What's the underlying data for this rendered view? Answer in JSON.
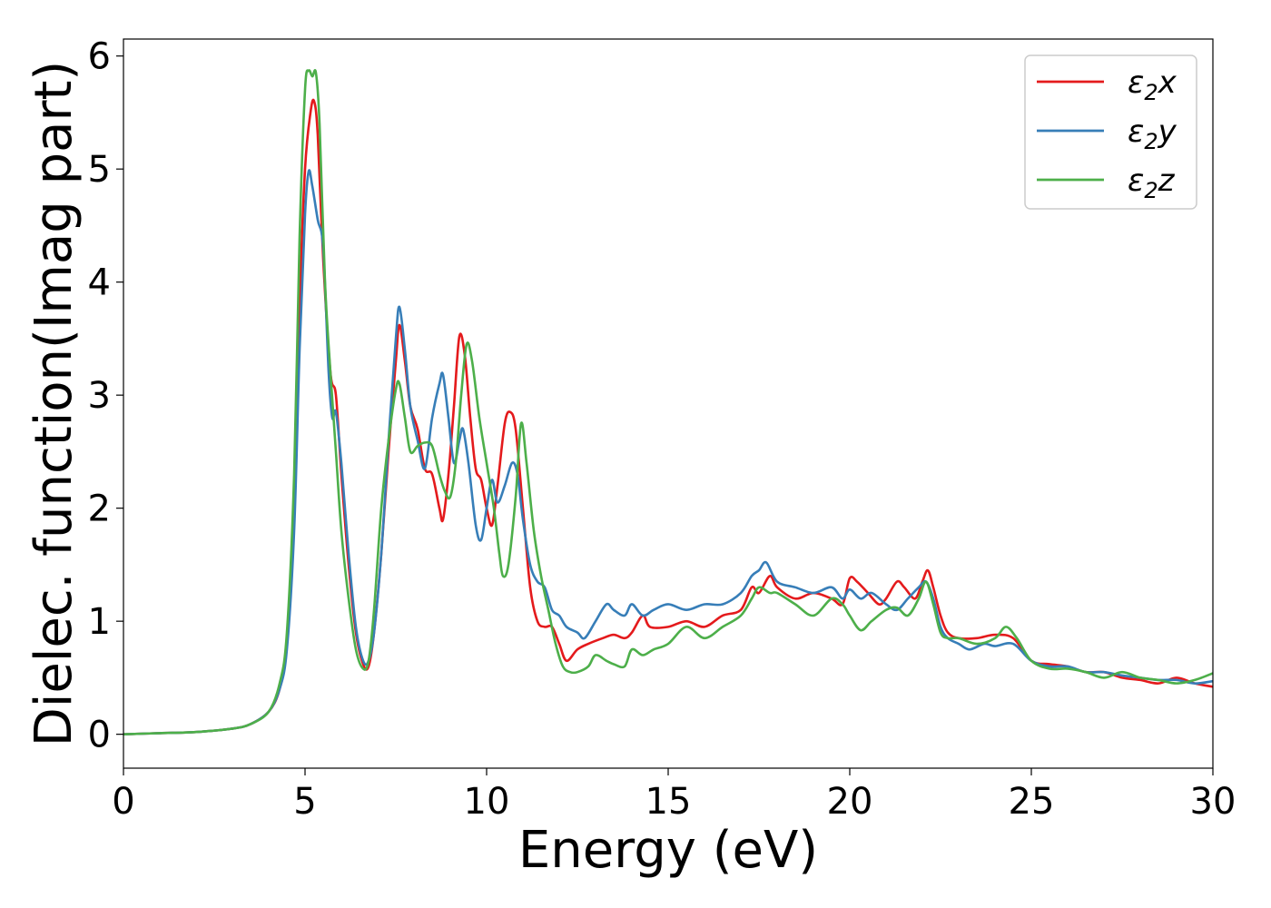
{
  "chart_data": {
    "type": "line",
    "xlabel": "Energy (eV)",
    "ylabel": "Dielec. function(Imag part)",
    "xlim": [
      0,
      30
    ],
    "ylim": [
      -0.3,
      6.15
    ],
    "xticks": [
      0,
      5,
      10,
      15,
      20,
      25,
      30
    ],
    "yticks": [
      0,
      1,
      2,
      3,
      4,
      5,
      6
    ],
    "grid": false,
    "legend_position": "top-right",
    "series": [
      {
        "name": "ε₂x",
        "label_base": "ε",
        "label_sub": "2",
        "label_suffix": "x",
        "color": "#e41a1c",
        "points": [
          [
            0,
            0
          ],
          [
            1,
            0.01
          ],
          [
            2,
            0.02
          ],
          [
            3,
            0.05
          ],
          [
            3.5,
            0.09
          ],
          [
            4,
            0.2
          ],
          [
            4.3,
            0.4
          ],
          [
            4.5,
            0.8
          ],
          [
            4.7,
            2.0
          ],
          [
            4.85,
            3.8
          ],
          [
            5.0,
            5.0
          ],
          [
            5.15,
            5.5
          ],
          [
            5.25,
            5.6
          ],
          [
            5.35,
            5.3
          ],
          [
            5.5,
            4.2
          ],
          [
            5.7,
            3.2
          ],
          [
            5.85,
            3.0
          ],
          [
            6.0,
            2.3
          ],
          [
            6.2,
            1.5
          ],
          [
            6.4,
            0.9
          ],
          [
            6.6,
            0.62
          ],
          [
            6.75,
            0.6
          ],
          [
            6.9,
            0.9
          ],
          [
            7.1,
            1.6
          ],
          [
            7.3,
            2.5
          ],
          [
            7.5,
            3.3
          ],
          [
            7.6,
            3.62
          ],
          [
            7.75,
            3.3
          ],
          [
            7.9,
            2.9
          ],
          [
            8.1,
            2.7
          ],
          [
            8.3,
            2.35
          ],
          [
            8.5,
            2.3
          ],
          [
            8.7,
            2.0
          ],
          [
            8.8,
            1.9
          ],
          [
            8.95,
            2.3
          ],
          [
            9.1,
            2.9
          ],
          [
            9.25,
            3.52
          ],
          [
            9.4,
            3.35
          ],
          [
            9.55,
            2.8
          ],
          [
            9.7,
            2.35
          ],
          [
            9.85,
            2.25
          ],
          [
            10.0,
            2.0
          ],
          [
            10.15,
            1.85
          ],
          [
            10.3,
            2.2
          ],
          [
            10.5,
            2.75
          ],
          [
            10.65,
            2.85
          ],
          [
            10.8,
            2.7
          ],
          [
            11.0,
            2.0
          ],
          [
            11.2,
            1.3
          ],
          [
            11.4,
            1.0
          ],
          [
            11.6,
            0.95
          ],
          [
            11.8,
            0.95
          ],
          [
            12.0,
            0.8
          ],
          [
            12.2,
            0.65
          ],
          [
            12.5,
            0.75
          ],
          [
            12.8,
            0.8
          ],
          [
            13.2,
            0.85
          ],
          [
            13.5,
            0.88
          ],
          [
            13.8,
            0.85
          ],
          [
            14.0,
            0.9
          ],
          [
            14.3,
            1.05
          ],
          [
            14.5,
            0.95
          ],
          [
            15.0,
            0.95
          ],
          [
            15.5,
            1.0
          ],
          [
            16.0,
            0.95
          ],
          [
            16.5,
            1.05
          ],
          [
            17.0,
            1.1
          ],
          [
            17.3,
            1.3
          ],
          [
            17.5,
            1.25
          ],
          [
            17.8,
            1.4
          ],
          [
            18.0,
            1.3
          ],
          [
            18.5,
            1.2
          ],
          [
            19.0,
            1.25
          ],
          [
            19.5,
            1.2
          ],
          [
            19.8,
            1.15
          ],
          [
            20.0,
            1.38
          ],
          [
            20.2,
            1.35
          ],
          [
            20.5,
            1.25
          ],
          [
            20.8,
            1.15
          ],
          [
            21.0,
            1.2
          ],
          [
            21.3,
            1.35
          ],
          [
            21.5,
            1.3
          ],
          [
            21.8,
            1.2
          ],
          [
            22.0,
            1.35
          ],
          [
            22.15,
            1.45
          ],
          [
            22.3,
            1.3
          ],
          [
            22.5,
            1.05
          ],
          [
            22.7,
            0.9
          ],
          [
            23.0,
            0.85
          ],
          [
            23.5,
            0.85
          ],
          [
            24.0,
            0.88
          ],
          [
            24.5,
            0.85
          ],
          [
            25.0,
            0.65
          ],
          [
            25.5,
            0.62
          ],
          [
            26.0,
            0.6
          ],
          [
            26.5,
            0.55
          ],
          [
            27.0,
            0.55
          ],
          [
            27.5,
            0.5
          ],
          [
            28.0,
            0.48
          ],
          [
            28.5,
            0.45
          ],
          [
            29.0,
            0.5
          ],
          [
            29.5,
            0.45
          ],
          [
            30.0,
            0.42
          ]
        ]
      },
      {
        "name": "ε₂y",
        "label_base": "ε",
        "label_sub": "2",
        "label_suffix": "y",
        "color": "#377eb8",
        "points": [
          [
            0,
            0
          ],
          [
            1,
            0.01
          ],
          [
            2,
            0.02
          ],
          [
            3,
            0.05
          ],
          [
            3.5,
            0.09
          ],
          [
            4,
            0.2
          ],
          [
            4.3,
            0.4
          ],
          [
            4.5,
            0.75
          ],
          [
            4.7,
            1.8
          ],
          [
            4.85,
            3.4
          ],
          [
            5.0,
            4.6
          ],
          [
            5.1,
            4.98
          ],
          [
            5.2,
            4.85
          ],
          [
            5.35,
            4.55
          ],
          [
            5.5,
            4.3
          ],
          [
            5.65,
            3.2
          ],
          [
            5.75,
            2.8
          ],
          [
            5.85,
            2.85
          ],
          [
            6.0,
            2.4
          ],
          [
            6.2,
            1.6
          ],
          [
            6.4,
            0.95
          ],
          [
            6.6,
            0.65
          ],
          [
            6.75,
            0.65
          ],
          [
            6.9,
            0.9
          ],
          [
            7.1,
            1.6
          ],
          [
            7.3,
            2.6
          ],
          [
            7.5,
            3.5
          ],
          [
            7.6,
            3.78
          ],
          [
            7.75,
            3.4
          ],
          [
            7.9,
            2.9
          ],
          [
            8.1,
            2.6
          ],
          [
            8.3,
            2.35
          ],
          [
            8.5,
            2.8
          ],
          [
            8.7,
            3.1
          ],
          [
            8.8,
            3.18
          ],
          [
            8.95,
            2.8
          ],
          [
            9.1,
            2.4
          ],
          [
            9.25,
            2.6
          ],
          [
            9.35,
            2.7
          ],
          [
            9.5,
            2.4
          ],
          [
            9.7,
            1.85
          ],
          [
            9.85,
            1.72
          ],
          [
            10.0,
            2.0
          ],
          [
            10.15,
            2.25
          ],
          [
            10.3,
            2.05
          ],
          [
            10.5,
            2.2
          ],
          [
            10.7,
            2.4
          ],
          [
            10.85,
            2.3
          ],
          [
            11.0,
            1.9
          ],
          [
            11.2,
            1.5
          ],
          [
            11.4,
            1.35
          ],
          [
            11.6,
            1.3
          ],
          [
            11.8,
            1.1
          ],
          [
            12.0,
            1.05
          ],
          [
            12.2,
            0.95
          ],
          [
            12.5,
            0.9
          ],
          [
            12.7,
            0.85
          ],
          [
            13.0,
            1.0
          ],
          [
            13.3,
            1.15
          ],
          [
            13.5,
            1.1
          ],
          [
            13.8,
            1.05
          ],
          [
            14.0,
            1.15
          ],
          [
            14.3,
            1.05
          ],
          [
            14.6,
            1.1
          ],
          [
            15.0,
            1.15
          ],
          [
            15.5,
            1.1
          ],
          [
            16.0,
            1.15
          ],
          [
            16.5,
            1.15
          ],
          [
            17.0,
            1.25
          ],
          [
            17.3,
            1.4
          ],
          [
            17.5,
            1.45
          ],
          [
            17.7,
            1.52
          ],
          [
            18.0,
            1.35
          ],
          [
            18.5,
            1.3
          ],
          [
            19.0,
            1.25
          ],
          [
            19.5,
            1.3
          ],
          [
            19.8,
            1.2
          ],
          [
            20.0,
            1.28
          ],
          [
            20.3,
            1.2
          ],
          [
            20.6,
            1.25
          ],
          [
            21.0,
            1.15
          ],
          [
            21.3,
            1.1
          ],
          [
            21.6,
            1.2
          ],
          [
            21.9,
            1.3
          ],
          [
            22.1,
            1.35
          ],
          [
            22.3,
            1.2
          ],
          [
            22.5,
            0.95
          ],
          [
            22.7,
            0.85
          ],
          [
            23.0,
            0.8
          ],
          [
            23.3,
            0.75
          ],
          [
            23.7,
            0.8
          ],
          [
            24.0,
            0.78
          ],
          [
            24.5,
            0.8
          ],
          [
            25.0,
            0.65
          ],
          [
            25.5,
            0.6
          ],
          [
            26.0,
            0.6
          ],
          [
            26.5,
            0.55
          ],
          [
            27.0,
            0.55
          ],
          [
            27.5,
            0.52
          ],
          [
            28.0,
            0.5
          ],
          [
            28.5,
            0.48
          ],
          [
            29.0,
            0.48
          ],
          [
            29.5,
            0.45
          ],
          [
            30.0,
            0.47
          ]
        ]
      },
      {
        "name": "ε₂z",
        "label_base": "ε",
        "label_sub": "2",
        "label_suffix": "z",
        "color": "#4daf4a",
        "points": [
          [
            0,
            0
          ],
          [
            1,
            0.01
          ],
          [
            2,
            0.02
          ],
          [
            3,
            0.05
          ],
          [
            3.5,
            0.09
          ],
          [
            4,
            0.2
          ],
          [
            4.3,
            0.45
          ],
          [
            4.5,
            0.9
          ],
          [
            4.7,
            2.3
          ],
          [
            4.85,
            4.4
          ],
          [
            5.0,
            5.7
          ],
          [
            5.1,
            5.87
          ],
          [
            5.2,
            5.82
          ],
          [
            5.3,
            5.85
          ],
          [
            5.4,
            5.4
          ],
          [
            5.55,
            4.0
          ],
          [
            5.7,
            3.2
          ],
          [
            5.85,
            2.5
          ],
          [
            6.0,
            1.8
          ],
          [
            6.2,
            1.2
          ],
          [
            6.4,
            0.75
          ],
          [
            6.6,
            0.58
          ],
          [
            6.75,
            0.65
          ],
          [
            6.9,
            1.1
          ],
          [
            7.1,
            2.0
          ],
          [
            7.3,
            2.6
          ],
          [
            7.5,
            3.05
          ],
          [
            7.6,
            3.1
          ],
          [
            7.75,
            2.8
          ],
          [
            7.9,
            2.5
          ],
          [
            8.1,
            2.55
          ],
          [
            8.3,
            2.58
          ],
          [
            8.5,
            2.55
          ],
          [
            8.7,
            2.3
          ],
          [
            8.85,
            2.15
          ],
          [
            9.0,
            2.1
          ],
          [
            9.15,
            2.4
          ],
          [
            9.3,
            3.0
          ],
          [
            9.45,
            3.45
          ],
          [
            9.6,
            3.3
          ],
          [
            9.8,
            2.8
          ],
          [
            10.0,
            2.4
          ],
          [
            10.2,
            2.0
          ],
          [
            10.35,
            1.6
          ],
          [
            10.45,
            1.4
          ],
          [
            10.6,
            1.5
          ],
          [
            10.8,
            2.1
          ],
          [
            10.95,
            2.75
          ],
          [
            11.1,
            2.4
          ],
          [
            11.3,
            1.8
          ],
          [
            11.5,
            1.4
          ],
          [
            11.7,
            1.1
          ],
          [
            11.9,
            0.8
          ],
          [
            12.1,
            0.6
          ],
          [
            12.3,
            0.55
          ],
          [
            12.5,
            0.55
          ],
          [
            12.8,
            0.6
          ],
          [
            13.0,
            0.7
          ],
          [
            13.3,
            0.65
          ],
          [
            13.5,
            0.62
          ],
          [
            13.8,
            0.6
          ],
          [
            14.0,
            0.75
          ],
          [
            14.3,
            0.7
          ],
          [
            14.6,
            0.75
          ],
          [
            15.0,
            0.8
          ],
          [
            15.5,
            0.95
          ],
          [
            16.0,
            0.85
          ],
          [
            16.5,
            0.95
          ],
          [
            17.0,
            1.05
          ],
          [
            17.3,
            1.2
          ],
          [
            17.5,
            1.3
          ],
          [
            17.8,
            1.25
          ],
          [
            18.0,
            1.25
          ],
          [
            18.5,
            1.15
          ],
          [
            19.0,
            1.05
          ],
          [
            19.5,
            1.2
          ],
          [
            19.8,
            1.15
          ],
          [
            20.0,
            1.05
          ],
          [
            20.3,
            0.92
          ],
          [
            20.6,
            1.0
          ],
          [
            21.0,
            1.1
          ],
          [
            21.3,
            1.12
          ],
          [
            21.6,
            1.05
          ],
          [
            21.9,
            1.2
          ],
          [
            22.1,
            1.35
          ],
          [
            22.3,
            1.15
          ],
          [
            22.5,
            0.9
          ],
          [
            22.7,
            0.85
          ],
          [
            23.0,
            0.85
          ],
          [
            23.5,
            0.8
          ],
          [
            24.0,
            0.85
          ],
          [
            24.3,
            0.95
          ],
          [
            24.6,
            0.85
          ],
          [
            25.0,
            0.65
          ],
          [
            25.5,
            0.58
          ],
          [
            26.0,
            0.58
          ],
          [
            26.5,
            0.55
          ],
          [
            27.0,
            0.5
          ],
          [
            27.5,
            0.55
          ],
          [
            28.0,
            0.5
          ],
          [
            28.5,
            0.48
          ],
          [
            29.0,
            0.45
          ],
          [
            29.5,
            0.48
          ],
          [
            30.0,
            0.54
          ]
        ]
      }
    ]
  }
}
